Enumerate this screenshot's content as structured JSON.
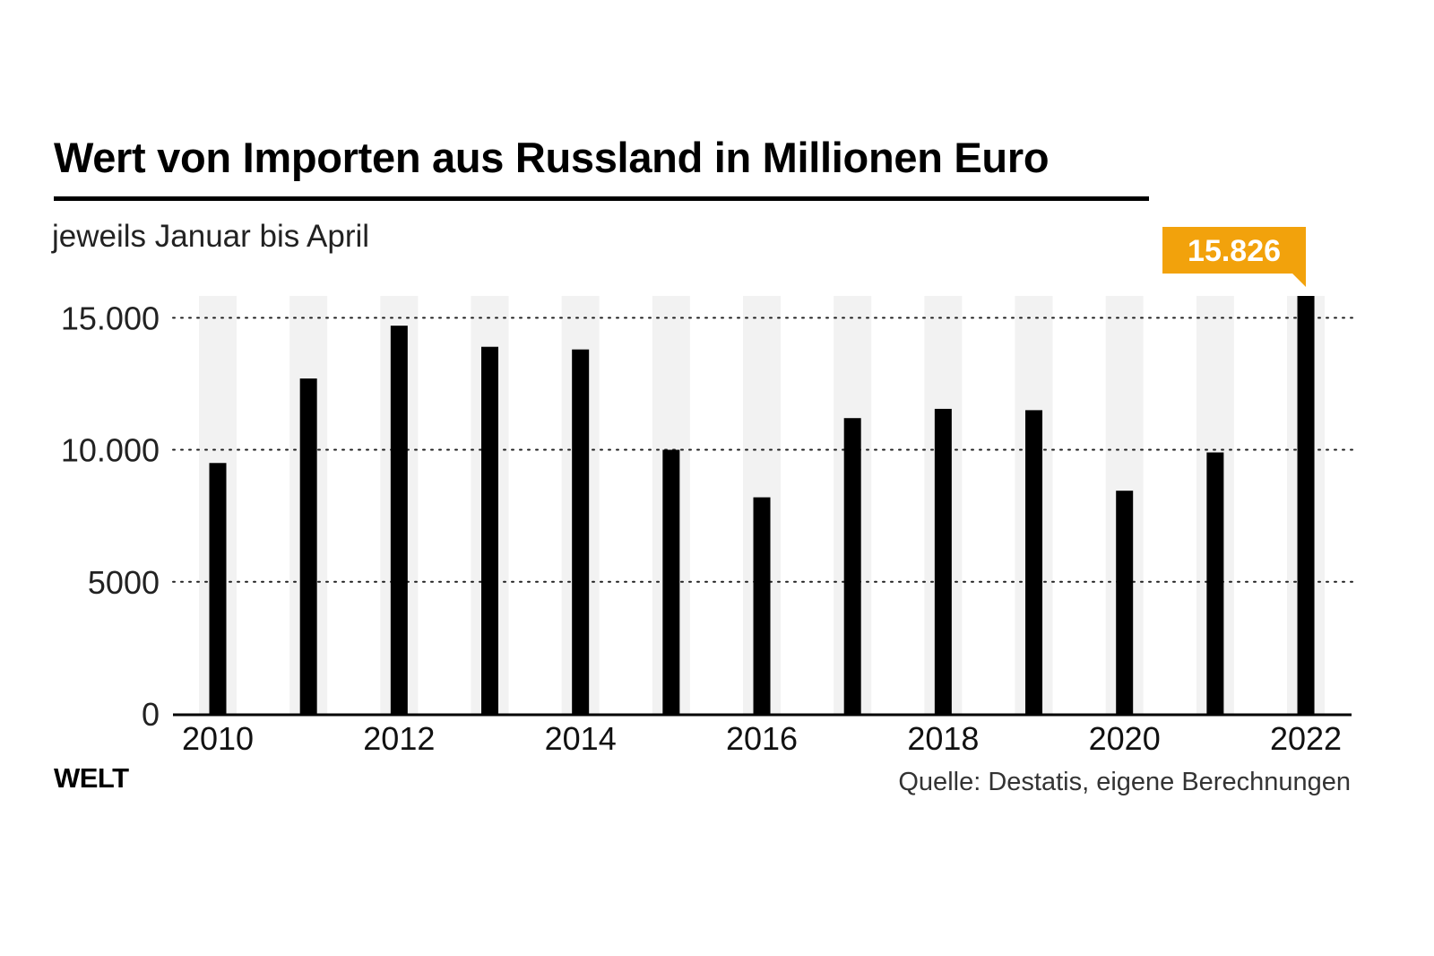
{
  "title": "Wert von Importen aus Russland in Millionen Euro",
  "subtitle": "jeweils Januar bis April",
  "logo": "WELT",
  "source": "Quelle: Destatis, eigene Berechnungen",
  "chart_data": {
    "type": "bar",
    "title": "Wert von Importen aus Russland in Millionen Euro",
    "subtitle": "jeweils Januar bis April",
    "xlabel": "",
    "ylabel": "",
    "categories": [
      "2010",
      "2011",
      "2012",
      "2013",
      "2014",
      "2015",
      "2016",
      "2017",
      "2018",
      "2019",
      "2020",
      "2021",
      "2022"
    ],
    "values": [
      9500,
      12700,
      14700,
      13900,
      13800,
      10000,
      8200,
      11200,
      11550,
      11500,
      8450,
      9900,
      15826
    ],
    "ylim": [
      0,
      15826
    ],
    "yticks": [
      0,
      5000,
      10000,
      15000
    ],
    "ytick_labels": [
      "0",
      "5000",
      "10.000",
      "15.000"
    ],
    "xtick_labels": [
      "2010",
      "",
      "2012",
      "",
      "2014",
      "",
      "2016",
      "",
      "2018",
      "",
      "2020",
      "",
      "2022"
    ],
    "grid": "dotted horizontal",
    "highlight": {
      "category": "2022",
      "label": "15.826",
      "color": "#f2a20c"
    },
    "colors": {
      "bar": "#000000",
      "band": "#f2f2f2",
      "highlight": "#f2a20c",
      "grid": "#222222"
    }
  }
}
